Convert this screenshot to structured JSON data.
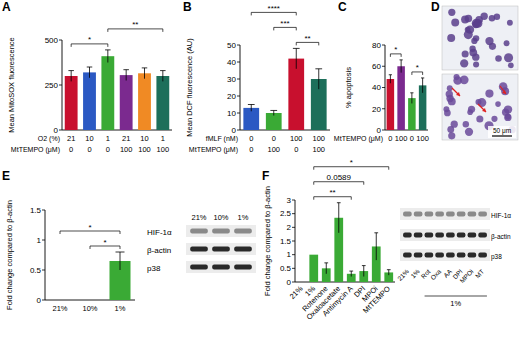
{
  "chart_data": [
    {
      "type": "bar",
      "title": "A",
      "ylabel": "Mean MitoSOX fluorescence",
      "categories": [
        "21",
        "10",
        "1",
        "21",
        "10",
        "1"
      ],
      "xlabel": "O2 (%)",
      "x_rows": [
        {
          "label": "MtTEMPO (μM)",
          "values": [
            "0",
            "0",
            "0",
            "100",
            "100",
            "100"
          ]
        }
      ],
      "values": [
        300,
        320,
        410,
        305,
        315,
        300
      ],
      "errors": [
        30,
        30,
        35,
        30,
        30,
        30
      ],
      "colors": [
        "#c8102e",
        "#2b59c3",
        "#3aaa35",
        "#7b2a8f",
        "#f08a24",
        "#1d6f5a"
      ],
      "ylim": [
        0,
        500
      ],
      "yticks": [
        0,
        250,
        500
      ],
      "grid": false,
      "annotations": [
        {
          "text": "*",
          "from": 0,
          "to": 2
        },
        {
          "text": "**",
          "from": 2,
          "to": 5
        }
      ]
    },
    {
      "type": "bar",
      "title": "B",
      "ylabel": "Mean DCF fluorescence (AU)",
      "categories": [
        "0",
        "0",
        "100",
        "100"
      ],
      "xlabel": "fMLF (nM)",
      "x_rows": [
        {
          "label": "MtTEMPO (μM)",
          "values": [
            "0",
            "100",
            "0",
            "100"
          ]
        }
      ],
      "values": [
        13,
        10,
        42,
        30
      ],
      "errors": [
        2,
        1.5,
        6,
        6
      ],
      "colors": [
        "#2b59c3",
        "#3aaa35",
        "#c8102e",
        "#1d6f5a"
      ],
      "ylim": [
        0,
        50
      ],
      "yticks": [
        0,
        10,
        20,
        30,
        40,
        50
      ],
      "grid": false,
      "annotations": [
        {
          "text": "**",
          "from": 2,
          "to": 3
        },
        {
          "text": "***",
          "from": 1,
          "to": 2
        },
        {
          "text": "****",
          "from": 0,
          "to": 2
        }
      ]
    },
    {
      "type": "bar",
      "title": "C",
      "ylabel": "% apoptosis",
      "categories": [
        "0",
        "100",
        "0",
        "100"
      ],
      "xlabel": "MtTEMPO (μM)",
      "values": [
        48,
        60,
        30,
        42
      ],
      "errors": [
        4,
        6,
        5,
        7
      ],
      "colors": [
        "#c8102e",
        "#7b2a8f",
        "#3aaa35",
        "#1d6f5a"
      ],
      "ylim": [
        0,
        80
      ],
      "yticks": [
        0,
        20,
        40,
        60,
        80
      ],
      "grid": false,
      "annotations": [
        {
          "text": "*",
          "from": 0,
          "to": 1
        },
        {
          "text": "*",
          "from": 2,
          "to": 3
        }
      ]
    },
    {
      "type": "bar",
      "title": "E",
      "ylabel": "Fold change compared to β-actin",
      "categories": [
        "21%",
        "10%",
        "1%"
      ],
      "values": [
        0,
        0,
        0.65
      ],
      "errors": [
        0,
        0,
        0.15
      ],
      "color": "#3aaa35",
      "ylim": [
        0,
        1.5
      ],
      "yticks": [
        0,
        0.5,
        1,
        1.5
      ],
      "grid": false,
      "annotations": [
        {
          "text": "*",
          "from": 1,
          "to": 2
        },
        {
          "text": "*",
          "from": 0,
          "to": 2
        }
      ]
    },
    {
      "type": "bar",
      "title": "F",
      "ylabel": "Fold change compared to β-actin",
      "categories": [
        "21%",
        "1%",
        "Rotenone",
        "Oxaloacetate",
        "Antimycin A",
        "DPI",
        "MPOi",
        "MtTEMPO"
      ],
      "values": [
        0,
        1,
        0.5,
        2.35,
        0.3,
        0.4,
        1.3,
        0.35
      ],
      "errors": [
        0,
        0,
        0.2,
        0.55,
        0.1,
        0.2,
        0.5,
        0.1
      ],
      "color": "#3aaa35",
      "ylim": [
        0,
        3
      ],
      "yticks": [
        0,
        0.5,
        1,
        1.5,
        2,
        2.5,
        3
      ],
      "grid": false,
      "annotations": [
        {
          "text": "**",
          "from": 1,
          "to": 4
        },
        {
          "text": "0.0589",
          "from": 1,
          "to": 5
        },
        {
          "text": "*",
          "from": 1,
          "to": 7
        }
      ]
    }
  ],
  "micrograph": {
    "title": "D",
    "scale_bar": "50 μm"
  },
  "blots": {
    "E": {
      "lanes": [
        "21%",
        "10%",
        "1%"
      ],
      "rows": [
        "HIF-1α",
        "β-actin",
        "p38"
      ]
    },
    "F": {
      "lanes": [
        "21%",
        "1%",
        "Rot",
        "Oxa",
        "AA",
        "DPI",
        "MPOi",
        "MT"
      ],
      "group_label": "1%",
      "group_lanes": [
        2,
        7
      ],
      "rows": [
        "HIF-1α",
        "β-actin",
        "p38"
      ]
    }
  }
}
